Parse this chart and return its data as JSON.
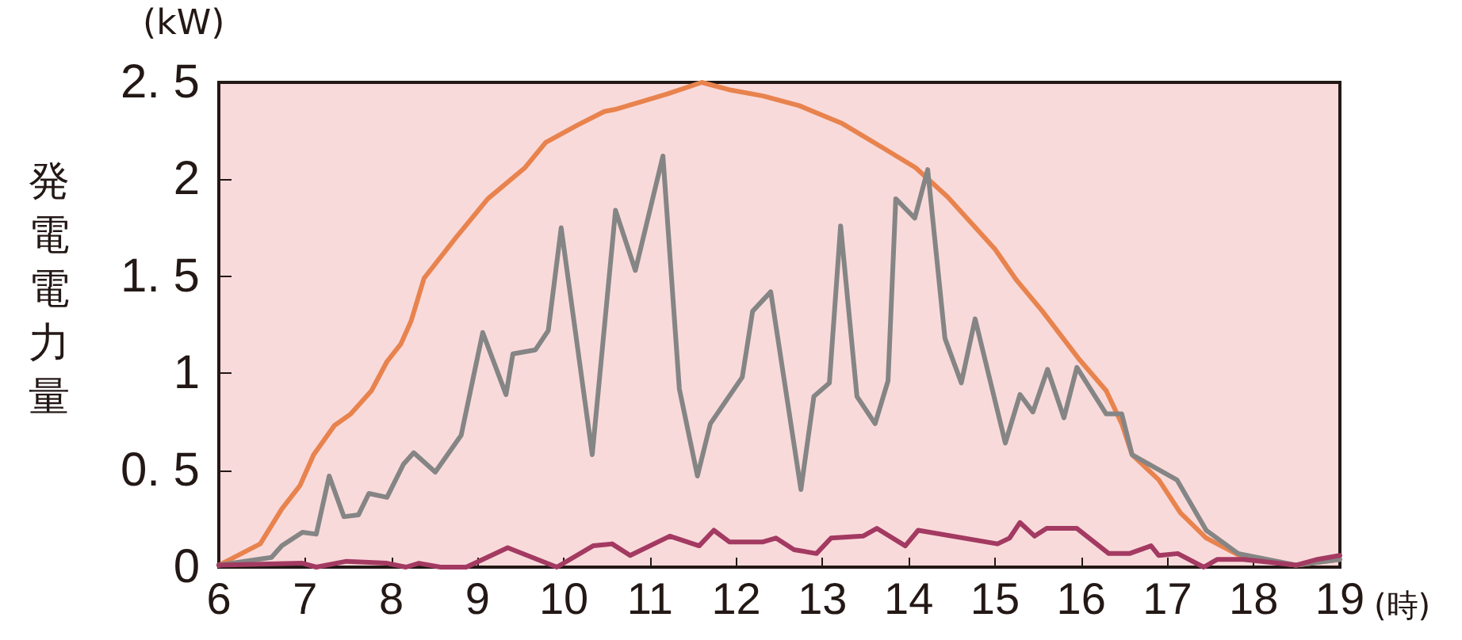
{
  "chart_data": {
    "type": "line",
    "xlabel": "(時)",
    "ylabel": "発電電力量",
    "annotations": [
      "(kW)"
    ],
    "xlim": [
      6,
      19
    ],
    "xticks": [
      6,
      7,
      8,
      9,
      10,
      11,
      12,
      13,
      14,
      15,
      16,
      17,
      18,
      19
    ],
    "ylim": [
      0,
      2.5
    ],
    "yticks": [
      0,
      {
        "value": 0.5,
        "label": "0. 5"
      },
      1,
      {
        "value": 1.5,
        "label": "1. 5"
      },
      2,
      {
        "value": 2.5,
        "label": "2. 5"
      }
    ],
    "grid": false,
    "marker": "none",
    "line_style": "solid",
    "series": [
      {
        "color": "#e8834e",
        "x": [
          6.0,
          6.48,
          6.73,
          6.94,
          7.1,
          7.34,
          7.53,
          7.77,
          7.95,
          8.11,
          8.23,
          8.38,
          8.75,
          9.12,
          9.55,
          9.79,
          10.16,
          10.47,
          10.59,
          10.9,
          11.2,
          11.6,
          11.94,
          12.31,
          12.73,
          13.22,
          13.71,
          14.08,
          14.45,
          15.0,
          15.25,
          15.55,
          15.98,
          16.29,
          16.47,
          16.59,
          16.9,
          17.15,
          17.45,
          17.88,
          18.49,
          19.0
        ],
        "values": [
          0.01,
          0.12,
          0.3,
          0.42,
          0.58,
          0.73,
          0.79,
          0.91,
          1.06,
          1.15,
          1.27,
          1.49,
          1.7,
          1.9,
          2.06,
          2.19,
          2.28,
          2.35,
          2.36,
          2.4,
          2.44,
          2.5,
          2.46,
          2.43,
          2.38,
          2.29,
          2.16,
          2.06,
          1.91,
          1.64,
          1.48,
          1.32,
          1.07,
          0.91,
          0.74,
          0.58,
          0.45,
          0.28,
          0.15,
          0.05,
          0.01,
          0.04
        ]
      },
      {
        "color": "#858585",
        "x": [
          6.0,
          6.61,
          6.73,
          6.97,
          7.13,
          7.28,
          7.45,
          7.62,
          7.74,
          7.95,
          8.14,
          8.26,
          8.51,
          8.81,
          9.06,
          9.33,
          9.41,
          9.67,
          9.82,
          9.97,
          10.33,
          10.6,
          10.83,
          11.15,
          11.34,
          11.55,
          11.7,
          12.07,
          12.19,
          12.4,
          12.75,
          12.9,
          13.08,
          13.21,
          13.4,
          13.61,
          13.76,
          13.85,
          14.07,
          14.22,
          14.42,
          14.61,
          14.77,
          15.12,
          15.29,
          15.44,
          15.61,
          15.8,
          15.95,
          16.29,
          16.47,
          16.59,
          17.11,
          17.45,
          17.82,
          18.49,
          19.0
        ],
        "values": [
          0.01,
          0.05,
          0.11,
          0.18,
          0.17,
          0.47,
          0.26,
          0.27,
          0.38,
          0.36,
          0.53,
          0.59,
          0.49,
          0.68,
          1.21,
          0.89,
          1.1,
          1.12,
          1.22,
          1.75,
          0.58,
          1.84,
          1.53,
          2.12,
          0.92,
          0.47,
          0.74,
          0.98,
          1.32,
          1.42,
          0.4,
          0.88,
          0.95,
          1.76,
          0.88,
          0.74,
          0.96,
          1.9,
          1.8,
          2.05,
          1.18,
          0.95,
          1.28,
          0.64,
          0.89,
          0.8,
          1.02,
          0.77,
          1.03,
          0.79,
          0.79,
          0.58,
          0.45,
          0.19,
          0.07,
          0.01,
          0.04
        ]
      },
      {
        "color": "#a33a62",
        "x": [
          6.0,
          6.97,
          7.13,
          7.48,
          7.95,
          8.17,
          8.32,
          8.57,
          8.87,
          9.35,
          9.92,
          10.34,
          10.56,
          10.77,
          11.23,
          11.57,
          11.74,
          11.92,
          12.31,
          12.46,
          12.67,
          12.93,
          13.1,
          13.47,
          13.63,
          13.96,
          14.11,
          15.03,
          15.17,
          15.29,
          15.46,
          15.6,
          15.95,
          16.32,
          16.56,
          16.81,
          16.9,
          17.12,
          17.42,
          17.58,
          17.88,
          18.49,
          18.74,
          19.0
        ],
        "values": [
          0.01,
          0.02,
          0,
          0.03,
          0.02,
          0,
          0.02,
          0,
          0,
          0.1,
          0,
          0.11,
          0.12,
          0.06,
          0.16,
          0.11,
          0.19,
          0.13,
          0.13,
          0.15,
          0.09,
          0.07,
          0.15,
          0.16,
          0.2,
          0.11,
          0.19,
          0.12,
          0.15,
          0.23,
          0.16,
          0.2,
          0.2,
          0.07,
          0.07,
          0.11,
          0.06,
          0.07,
          0,
          0.04,
          0.04,
          0.01,
          0.04,
          0.06
        ]
      }
    ]
  }
}
